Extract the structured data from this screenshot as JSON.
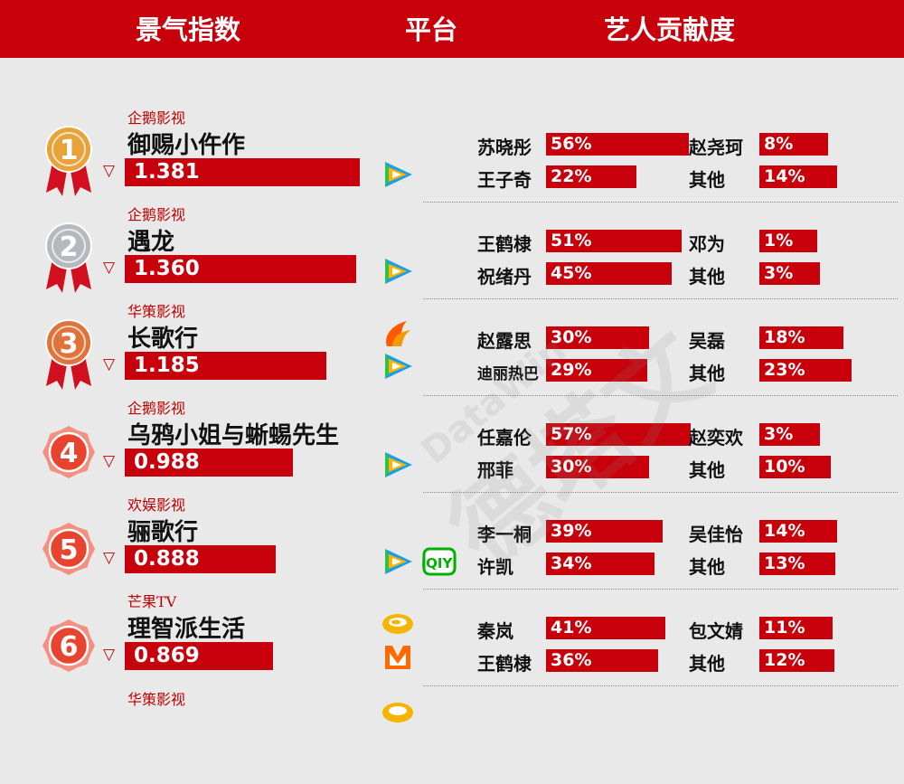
{
  "header": {
    "col1": "景气指数",
    "col2": "平台",
    "col3": "艺人贡献度"
  },
  "colors": {
    "accent": "#c8000b",
    "gold": "#e8a23a",
    "silver": "#b5b9be",
    "bronze": "#e0733a",
    "ribbon": "#d10f1f"
  },
  "rows": [
    {
      "rank": "1",
      "studio": "企鹅影视",
      "title": "御赐小仵作",
      "index": "1.381",
      "index_fraction": 1.0,
      "medal": "gold-medal",
      "platforms": [
        "tencent-video-icon"
      ],
      "artists": [
        {
          "name": "苏晓彤",
          "pct": "56%"
        },
        {
          "name": "赵尧珂",
          "pct": "8%"
        },
        {
          "name": "王子奇",
          "pct": "22%"
        },
        {
          "name": "其他",
          "pct": "14%"
        }
      ]
    },
    {
      "rank": "2",
      "studio": "企鹅影视",
      "title": "遇龙",
      "index": "1.360",
      "index_fraction": 0.985,
      "medal": "silver-medal",
      "platforms": [
        "tencent-video-icon"
      ],
      "artists": [
        {
          "name": "王鹤棣",
          "pct": "51%"
        },
        {
          "name": "邓为",
          "pct": "1%"
        },
        {
          "name": "祝绪丹",
          "pct": "45%"
        },
        {
          "name": "其他",
          "pct": "3%"
        }
      ]
    },
    {
      "rank": "3",
      "studio": "华策影视",
      "title": "长歌行",
      "index": "1.185",
      "index_fraction": 0.858,
      "medal": "bronze-medal",
      "platforms": [
        "youku-icon",
        "tencent-video-icon"
      ],
      "artists": [
        {
          "name": "赵露思",
          "pct": "30%"
        },
        {
          "name": "吴磊",
          "pct": "18%"
        },
        {
          "name": "迪丽热巴",
          "pct": "29%"
        },
        {
          "name": "其他",
          "pct": "23%"
        }
      ]
    },
    {
      "rank": "4",
      "studio": "企鹅影视",
      "title": "乌鸦小姐与蜥蜴先生",
      "index": "0.988",
      "index_fraction": 0.715,
      "medal": "badge",
      "platforms": [
        "tencent-video-icon"
      ],
      "artists": [
        {
          "name": "任嘉伦",
          "pct": "57%"
        },
        {
          "name": "赵奕欢",
          "pct": "3%"
        },
        {
          "name": "邢菲",
          "pct": "30%"
        },
        {
          "name": "其他",
          "pct": "10%"
        }
      ]
    },
    {
      "rank": "5",
      "studio": "欢娱影视",
      "title": "骊歌行",
      "index": "0.888",
      "index_fraction": 0.643,
      "medal": "badge",
      "platforms": [
        "tencent-video-icon",
        "iqiyi-icon"
      ],
      "artists": [
        {
          "name": "李一桐",
          "pct": "39%"
        },
        {
          "name": "吴佳怡",
          "pct": "14%"
        },
        {
          "name": "许凯",
          "pct": "34%"
        },
        {
          "name": "其他",
          "pct": "13%"
        }
      ]
    },
    {
      "rank": "6",
      "studio": "芒果TV",
      "title": "理智派生活",
      "index": "0.869",
      "index_fraction": 0.629,
      "medal": "badge",
      "platforms": [
        "hunan-tv-icon",
        "mango-tv-icon"
      ],
      "artists": [
        {
          "name": "秦岚",
          "pct": "41%"
        },
        {
          "name": "包文婧",
          "pct": "11%"
        },
        {
          "name": "王鹤棣",
          "pct": "36%"
        },
        {
          "name": "其他",
          "pct": "12%"
        }
      ]
    }
  ],
  "partial_row": {
    "studio": "华策影视",
    "platform": "hunan-tv-icon"
  },
  "watermark": {
    "text": "德塔文",
    "sub": "DataWin"
  }
}
